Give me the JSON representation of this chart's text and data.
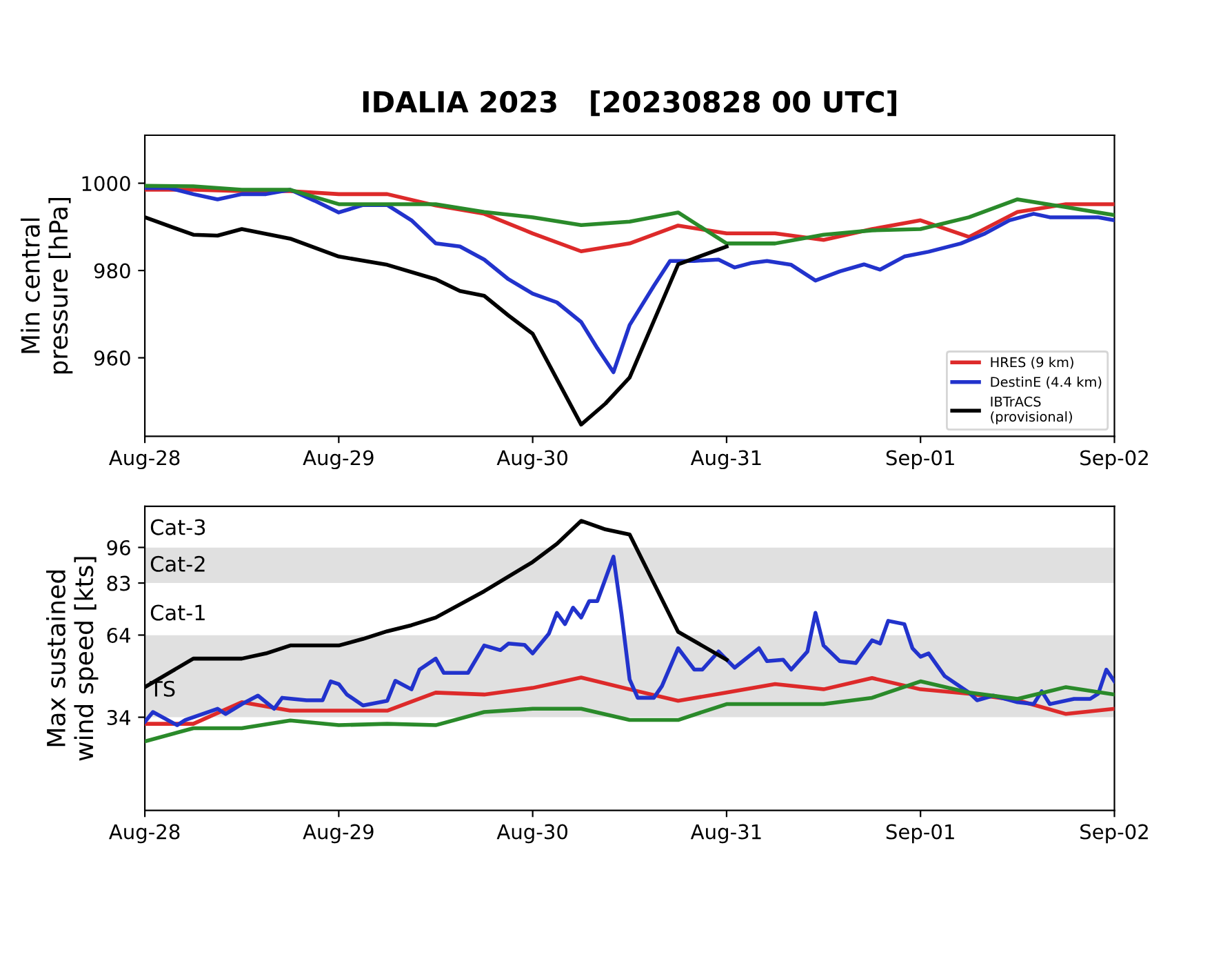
{
  "chart_data": [
    {
      "type": "line",
      "title": "IDALIA 2023   [20230828 00 UTC]",
      "ylabel": "Min central\npressure [hPa]",
      "x": [
        "2023-08-28T00:00",
        "2023-08-28T06:00",
        "2023-08-28T12:00",
        "2023-08-28T18:00",
        "2023-08-29T00:00",
        "2023-08-29T06:00",
        "2023-08-29T12:00",
        "2023-08-29T18:00",
        "2023-08-30T00:00",
        "2023-08-30T06:00",
        "2023-08-30T12:00",
        "2023-08-30T18:00",
        "2023-08-31T00:00",
        "2023-08-31T06:00",
        "2023-08-31T12:00",
        "2023-08-31T18:00",
        "2023-09-01T00:00",
        "2023-09-01T06:00",
        "2023-09-01T12:00",
        "2023-09-01T18:00",
        "2023-09-02T00:00"
      ],
      "xlim": [
        "2023-08-28",
        "2023-09-02"
      ],
      "xticks": [
        {
          "value": "2023-08-28",
          "label": "Aug-28"
        },
        {
          "value": "2023-08-29",
          "label": "Aug-29"
        },
        {
          "value": "2023-08-30",
          "label": "Aug-30"
        },
        {
          "value": "2023-08-31",
          "label": "Aug-31"
        },
        {
          "value": "2023-09-01",
          "label": "Sep-01"
        },
        {
          "value": "2023-09-02",
          "label": "Sep-02"
        }
      ],
      "ylim": [
        942,
        1011
      ],
      "yticks": [
        960,
        980,
        1000
      ],
      "legend": "bottom right",
      "series": [
        {
          "name": "HRES (9 km)",
          "color": "#dd2a2a",
          "values": [
            998.5,
            998.5,
            998.2,
            998.2,
            997.5,
            997.5,
            994.9,
            993,
            988.5,
            984.4,
            986.2,
            990.3,
            988.5,
            988.5,
            987,
            989.5,
            991.5,
            987.7,
            993.4,
            995.2,
            995.2
          ]
        },
        {
          "name": "DestinE (4.4 km)",
          "color": "#2233cc",
          "x": [
            "2023-08-28T00:00",
            "2023-08-28T03:00",
            "2023-08-28T06:00",
            "2023-08-28T09:00",
            "2023-08-28T12:00",
            "2023-08-28T15:00",
            "2023-08-28T18:00",
            "2023-08-28T21:00",
            "2023-08-29T00:00",
            "2023-08-29T03:00",
            "2023-08-29T06:00",
            "2023-08-29T09:00",
            "2023-08-29T12:00",
            "2023-08-29T15:00",
            "2023-08-29T18:00",
            "2023-08-29T21:00",
            "2023-08-30T00:00",
            "2023-08-30T03:00",
            "2023-08-30T06:00",
            "2023-08-30T08:00",
            "2023-08-30T10:00",
            "2023-08-30T12:00",
            "2023-08-30T15:00",
            "2023-08-30T17:00",
            "2023-08-30T20:00",
            "2023-08-30T23:00",
            "2023-08-31T01:00",
            "2023-08-31T03:00",
            "2023-08-31T05:00",
            "2023-08-31T08:00",
            "2023-08-31T11:00",
            "2023-08-31T14:00",
            "2023-08-31T17:00",
            "2023-08-31T19:00",
            "2023-08-31T22:00",
            "2023-09-01T01:00",
            "2023-09-01T05:00",
            "2023-09-01T08:00",
            "2023-09-01T11:00",
            "2023-09-01T14:00",
            "2023-09-01T16:00",
            "2023-09-01T19:00",
            "2023-09-01T22:00",
            "2023-09-02T00:00"
          ],
          "values": [
            998.9,
            998.9,
            997.5,
            996.3,
            997.5,
            997.5,
            998.5,
            996,
            993.3,
            995,
            995,
            991.5,
            986.2,
            985.5,
            982.5,
            978,
            974.7,
            972.7,
            968.2,
            962.2,
            956.7,
            967.5,
            976.5,
            982.2,
            982.2,
            982.5,
            980.7,
            981.7,
            982.2,
            981.3,
            977.7,
            979.8,
            981.4,
            980.2,
            983.2,
            984.3,
            986.2,
            988.5,
            991.5,
            993,
            992.2,
            992.2,
            992.2,
            991.5
          ]
        },
        {
          "color": "#2a8a2a",
          "values": [
            999.4,
            999.3,
            998.5,
            998.5,
            995.2,
            995.2,
            995.2,
            993.4,
            992.2,
            990.4,
            991.2,
            993.3,
            986.2,
            986.2,
            988.2,
            989.2,
            989.5,
            992.2,
            996.3,
            994.5,
            992.7
          ]
        },
        {
          "name": "IBTrACS\n(provisional)",
          "color": "#000000",
          "x": [
            "2023-08-28T00:00",
            "2023-08-28T06:00",
            "2023-08-28T09:00",
            "2023-08-28T12:00",
            "2023-08-28T18:00",
            "2023-08-29T00:00",
            "2023-08-29T06:00",
            "2023-08-29T12:00",
            "2023-08-29T15:00",
            "2023-08-29T18:00",
            "2023-08-29T21:00",
            "2023-08-30T00:00",
            "2023-08-30T06:00",
            "2023-08-30T09:00",
            "2023-08-30T12:00",
            "2023-08-30T18:00",
            "2023-08-31T00:00"
          ],
          "values": [
            992.2,
            988.2,
            988,
            989.5,
            987.3,
            983.2,
            981.3,
            978,
            975.3,
            974.2,
            969.7,
            965.5,
            944.7,
            949.5,
            955.5,
            981.4,
            985.5
          ]
        }
      ]
    },
    {
      "type": "line",
      "ylabel": "Max sustained\nwind speed [kts]",
      "x": [
        "2023-08-28T00:00",
        "2023-08-28T06:00",
        "2023-08-28T12:00",
        "2023-08-28T18:00",
        "2023-08-29T00:00",
        "2023-08-29T06:00",
        "2023-08-29T12:00",
        "2023-08-29T18:00",
        "2023-08-30T00:00",
        "2023-08-30T06:00",
        "2023-08-30T12:00",
        "2023-08-30T18:00",
        "2023-08-31T00:00",
        "2023-08-31T06:00",
        "2023-08-31T12:00",
        "2023-08-31T18:00",
        "2023-09-01T00:00",
        "2023-09-01T06:00",
        "2023-09-01T12:00",
        "2023-09-01T18:00",
        "2023-09-02T00:00"
      ],
      "xlim": [
        "2023-08-28",
        "2023-09-02"
      ],
      "xticks": [
        {
          "value": "2023-08-28",
          "label": "Aug-28"
        },
        {
          "value": "2023-08-29",
          "label": "Aug-29"
        },
        {
          "value": "2023-08-30",
          "label": "Aug-30"
        },
        {
          "value": "2023-08-31",
          "label": "Aug-31"
        },
        {
          "value": "2023-09-01",
          "label": "Sep-01"
        },
        {
          "value": "2023-09-02",
          "label": "Sep-02"
        }
      ],
      "ylim": [
        0,
        111
      ],
      "yticks": [
        34,
        64,
        83,
        96
      ],
      "bands": [
        {
          "axis": "y",
          "from": 34,
          "to": 64,
          "label": "TS",
          "color": "#e0e0e0"
        },
        {
          "axis": "y",
          "from": 64,
          "to": 83,
          "label": "Cat-1",
          "color": "#ffffff"
        },
        {
          "axis": "y",
          "from": 83,
          "to": 96,
          "label": "Cat-2",
          "color": "#e0e0e0"
        },
        {
          "axis": "y",
          "from": 96,
          "to": 111,
          "label": "Cat-3",
          "color": "#ffffff"
        }
      ],
      "series": [
        {
          "color": "#dd2a2a",
          "values": [
            31.6,
            31.6,
            39.5,
            36.4,
            36.4,
            36.4,
            43,
            42.3,
            44.7,
            48.5,
            44.2,
            40,
            43,
            46.1,
            44.2,
            48.3,
            44.2,
            42.6,
            40.2,
            35.2,
            37.1
          ]
        },
        {
          "color": "#2233cc",
          "x": [
            "2023-08-28T00:00",
            "2023-08-28T01:00",
            "2023-08-28T04:00",
            "2023-08-28T05:00",
            "2023-08-28T09:00",
            "2023-08-28T10:00",
            "2023-08-28T12:00",
            "2023-08-28T14:00",
            "2023-08-28T16:00",
            "2023-08-28T17:00",
            "2023-08-28T20:00",
            "2023-08-28T22:00",
            "2023-08-28T23:00",
            "2023-08-29T00:00",
            "2023-08-29T01:00",
            "2023-08-29T03:00",
            "2023-08-29T06:00",
            "2023-08-29T07:00",
            "2023-08-29T09:00",
            "2023-08-29T10:00",
            "2023-08-29T12:00",
            "2023-08-29T13:00",
            "2023-08-29T16:00",
            "2023-08-29T18:00",
            "2023-08-29T20:00",
            "2023-08-29T21:00",
            "2023-08-29T23:00",
            "2023-08-30T00:00",
            "2023-08-30T02:00",
            "2023-08-30T03:00",
            "2023-08-30T04:00",
            "2023-08-30T05:00",
            "2023-08-30T06:00",
            "2023-08-30T07:00",
            "2023-08-30T08:00",
            "2023-08-30T10:00",
            "2023-08-30T11:00",
            "2023-08-30T12:00",
            "2023-08-30T13:00",
            "2023-08-30T15:00",
            "2023-08-30T16:00",
            "2023-08-30T18:00",
            "2023-08-30T20:00",
            "2023-08-30T21:00",
            "2023-08-30T23:00",
            "2023-08-31T01:00",
            "2023-08-31T04:00",
            "2023-08-31T05:00",
            "2023-08-31T07:00",
            "2023-08-31T08:00",
            "2023-08-31T10:00",
            "2023-08-31T11:00",
            "2023-08-31T12:00",
            "2023-08-31T14:00",
            "2023-08-31T16:00",
            "2023-08-31T18:00",
            "2023-08-31T19:00",
            "2023-08-31T20:00",
            "2023-08-31T22:00",
            "2023-08-31T23:00",
            "2023-09-01T00:00",
            "2023-09-01T01:00",
            "2023-09-01T03:00",
            "2023-09-01T06:00",
            "2023-09-01T07:00",
            "2023-09-01T09:00",
            "2023-09-01T12:00",
            "2023-09-01T14:00",
            "2023-09-01T15:00",
            "2023-09-01T16:00",
            "2023-09-01T19:00",
            "2023-09-01T21:00",
            "2023-09-01T22:00",
            "2023-09-01T23:00",
            "2023-09-02T00:00"
          ],
          "values": [
            32.3,
            35.9,
            31.1,
            33,
            37.1,
            35.2,
            38.8,
            41.9,
            37.1,
            41.1,
            40.2,
            40.2,
            47.1,
            46.1,
            42.3,
            38.3,
            40,
            47.3,
            44.2,
            51.4,
            55.4,
            50.2,
            50.2,
            60.2,
            58.5,
            60.9,
            60.4,
            57.3,
            64.5,
            72.1,
            68,
            74,
            70.4,
            76.4,
            76.4,
            92.6,
            71.6,
            47.8,
            41.1,
            41.1,
            45.4,
            59.2,
            51.4,
            51.4,
            58,
            52.1,
            59.2,
            54.5,
            55,
            51.4,
            58,
            72.1,
            60.2,
            54.5,
            53.8,
            62.1,
            60.9,
            69.2,
            68,
            59.2,
            56.1,
            57.3,
            49,
            43,
            40.2,
            41.9,
            39.5,
            38.8,
            43.5,
            38.8,
            40.7,
            40.7,
            42.6,
            51.4,
            47.1
          ]
        },
        {
          "color": "#2a8a2a",
          "values": [
            25.2,
            30,
            30,
            32.8,
            31.1,
            31.6,
            31.1,
            35.9,
            37.1,
            37.1,
            33,
            33,
            38.8,
            38.8,
            38.8,
            41.1,
            47.1,
            43,
            40.7,
            45,
            42.3
          ]
        },
        {
          "color": "#000000",
          "x": [
            "2023-08-28T00:00",
            "2023-08-28T06:00",
            "2023-08-28T12:00",
            "2023-08-28T15:00",
            "2023-08-28T18:00",
            "2023-08-29T00:00",
            "2023-08-29T03:00",
            "2023-08-29T06:00",
            "2023-08-29T09:00",
            "2023-08-29T12:00",
            "2023-08-29T18:00",
            "2023-08-30T00:00",
            "2023-08-30T03:00",
            "2023-08-30T06:00",
            "2023-08-30T09:00",
            "2023-08-30T12:00",
            "2023-08-30T18:00",
            "2023-08-31T00:00"
          ],
          "values": [
            45,
            55.4,
            55.4,
            57.3,
            60.2,
            60.2,
            62.6,
            65.4,
            67.6,
            70.4,
            80,
            90.7,
            97.3,
            105.7,
            102.6,
            100.7,
            65.2,
            55
          ]
        }
      ]
    }
  ]
}
